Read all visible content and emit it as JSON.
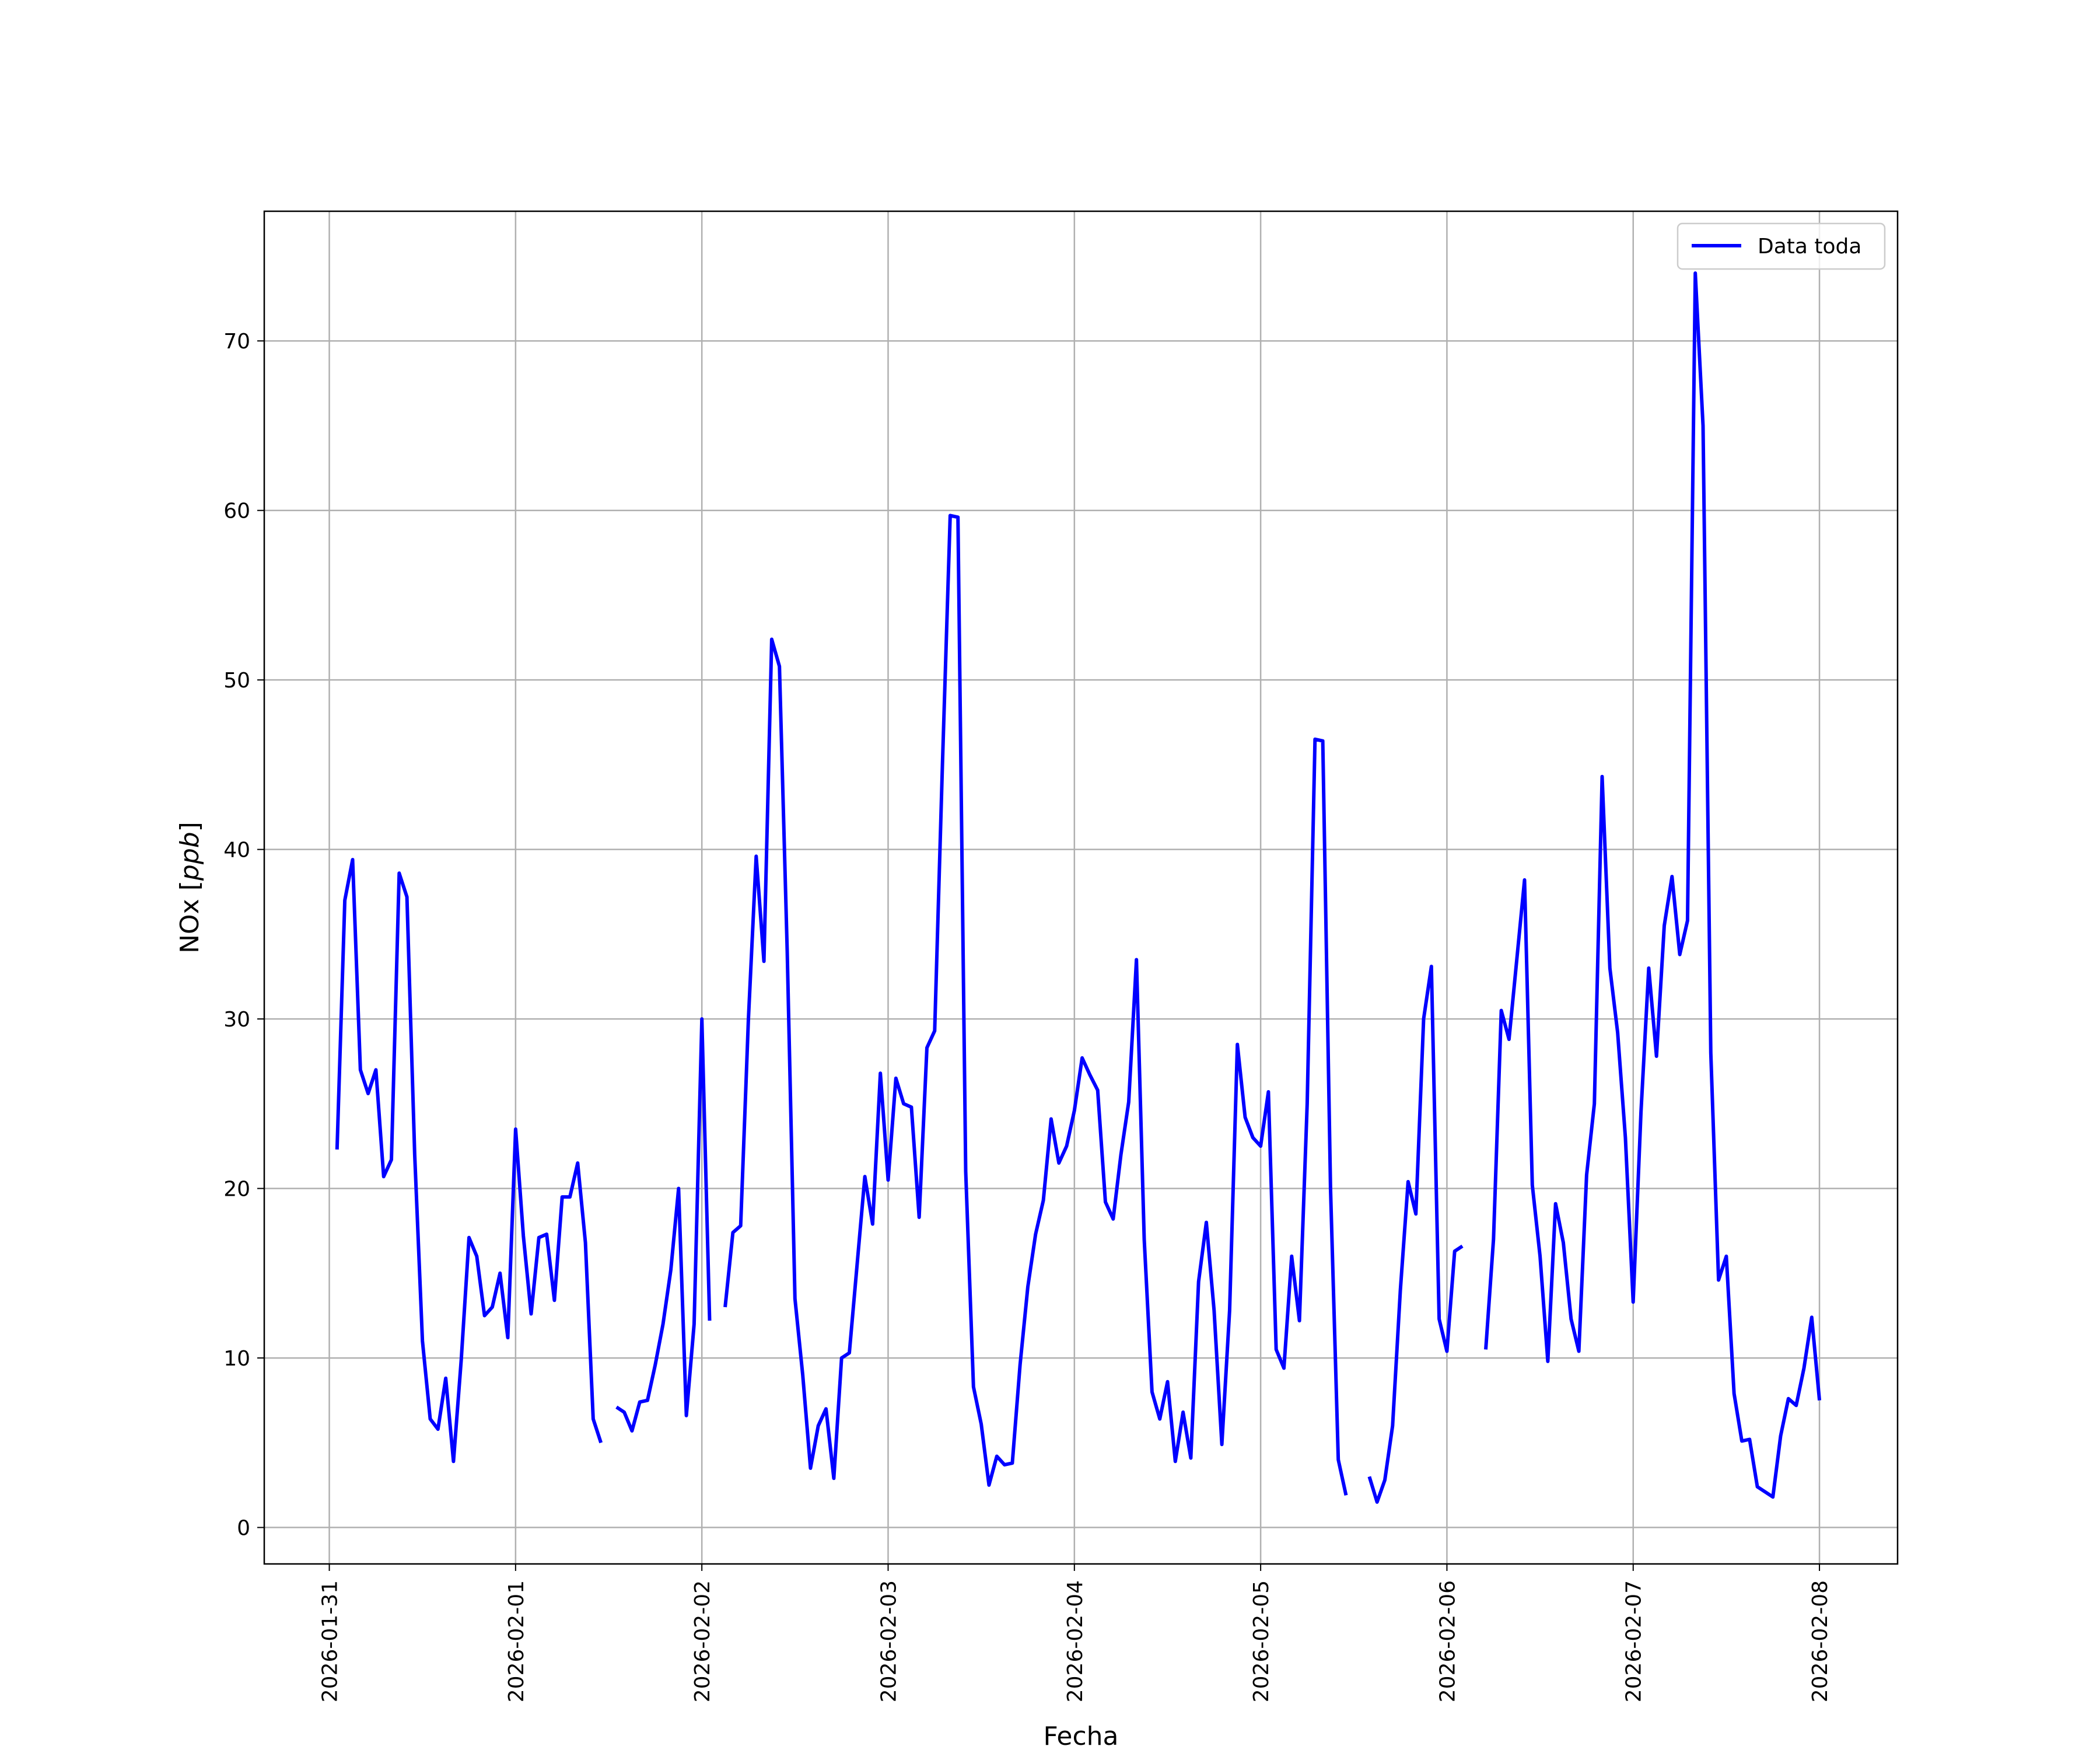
{
  "chart_data": {
    "type": "line",
    "title": "",
    "xlabel": "Fecha",
    "ylabel": "NOx [ppb]",
    "ylabel_parts": {
      "text": "NOx [",
      "unit": "ppb",
      "close": "]"
    },
    "x_ticks": [
      "2026-01-31",
      "2026-02-01",
      "2026-02-02",
      "2026-02-03",
      "2026-02-04",
      "2026-02-05",
      "2026-02-06",
      "2026-02-07",
      "2026-02-08"
    ],
    "y_ticks": [
      "0",
      "10",
      "20",
      "30",
      "40",
      "50",
      "60",
      "70"
    ],
    "xlim": [
      "2026-01-30T15:37",
      "2026-02-08T10:04"
    ],
    "ylim": [
      -2.15,
      77.65
    ],
    "grid": true,
    "legend": {
      "position": "top-right",
      "entries": [
        "Data toda"
      ]
    },
    "colors": {
      "series": "#0000ff",
      "grid": "#b0b0b0",
      "axes": "#000000"
    },
    "series": [
      {
        "name": "Data toda",
        "color": "#0000ff",
        "segments": [
          [
            [
              "2026-01-31T01:00",
              22.3
            ],
            [
              "2026-01-31T02:00",
              37.0
            ],
            [
              "2026-01-31T03:00",
              39.4
            ],
            [
              "2026-01-31T04:00",
              27.0
            ],
            [
              "2026-01-31T05:00",
              25.6
            ],
            [
              "2026-01-31T06:00",
              27.0
            ],
            [
              "2026-01-31T07:00",
              20.7
            ],
            [
              "2026-01-31T08:00",
              21.7
            ],
            [
              "2026-01-31T09:00",
              38.6
            ],
            [
              "2026-01-31T10:00",
              37.2
            ],
            [
              "2026-01-31T11:00",
              22.0
            ],
            [
              "2026-01-31T12:00",
              11.0
            ],
            [
              "2026-01-31T13:00",
              6.4
            ],
            [
              "2026-01-31T14:00",
              5.8
            ],
            [
              "2026-01-31T15:00",
              8.8
            ],
            [
              "2026-01-31T16:00",
              3.9
            ],
            [
              "2026-01-31T17:00",
              9.9
            ],
            [
              "2026-01-31T18:00",
              17.1
            ],
            [
              "2026-01-31T19:00",
              16.0
            ],
            [
              "2026-01-31T20:00",
              12.5
            ],
            [
              "2026-01-31T21:00",
              13.0
            ],
            [
              "2026-01-31T22:00",
              15.0
            ],
            [
              "2026-01-31T23:00",
              11.2
            ],
            [
              "2026-02-01T00:00",
              23.5
            ],
            [
              "2026-02-01T01:00",
              17.2
            ],
            [
              "2026-02-01T02:00",
              12.6
            ],
            [
              "2026-02-01T03:00",
              17.1
            ],
            [
              "2026-02-01T04:00",
              17.3
            ],
            [
              "2026-02-01T05:00",
              13.4
            ],
            [
              "2026-02-01T06:00",
              19.5
            ],
            [
              "2026-02-01T07:00",
              19.5
            ],
            [
              "2026-02-01T08:00",
              21.5
            ],
            [
              "2026-02-01T09:00",
              16.8
            ],
            [
              "2026-02-01T10:00",
              6.4
            ],
            [
              "2026-02-01T11:00",
              5.0
            ]
          ],
          [
            [
              "2026-02-01T13:00",
              7.1
            ],
            [
              "2026-02-01T14:00",
              6.8
            ],
            [
              "2026-02-01T15:00",
              5.7
            ],
            [
              "2026-02-01T16:00",
              7.4
            ],
            [
              "2026-02-01T17:00",
              7.5
            ],
            [
              "2026-02-01T18:00",
              9.6
            ],
            [
              "2026-02-01T19:00",
              12.0
            ],
            [
              "2026-02-01T20:00",
              15.2
            ],
            [
              "2026-02-01T21:00",
              20.0
            ],
            [
              "2026-02-01T22:00",
              6.6
            ],
            [
              "2026-02-01T23:00",
              12.0
            ],
            [
              "2026-02-02T00:00",
              30.0
            ],
            [
              "2026-02-02T01:00",
              12.2
            ]
          ],
          [
            [
              "2026-02-02T03:00",
              13.0
            ],
            [
              "2026-02-02T04:00",
              17.4
            ],
            [
              "2026-02-02T05:00",
              17.8
            ],
            [
              "2026-02-02T06:00",
              30.0
            ],
            [
              "2026-02-02T07:00",
              39.6
            ],
            [
              "2026-02-02T08:00",
              33.4
            ],
            [
              "2026-02-02T09:00",
              52.4
            ],
            [
              "2026-02-02T10:00",
              50.8
            ],
            [
              "2026-02-02T11:00",
              34.0
            ],
            [
              "2026-02-02T12:00",
              13.5
            ],
            [
              "2026-02-02T13:00",
              9.0
            ],
            [
              "2026-02-02T14:00",
              3.5
            ],
            [
              "2026-02-02T15:00",
              6.0
            ],
            [
              "2026-02-02T16:00",
              7.0
            ],
            [
              "2026-02-02T17:00",
              2.9
            ],
            [
              "2026-02-02T18:00",
              10.0
            ],
            [
              "2026-02-02T19:00",
              10.3
            ],
            [
              "2026-02-02T20:00",
              15.5
            ],
            [
              "2026-02-02T21:00",
              20.7
            ],
            [
              "2026-02-02T22:00",
              17.9
            ],
            [
              "2026-02-02T23:00",
              26.8
            ],
            [
              "2026-02-03T00:00",
              20.5
            ],
            [
              "2026-02-03T01:00",
              26.5
            ],
            [
              "2026-02-03T02:00",
              25.0
            ],
            [
              "2026-02-03T03:00",
              24.8
            ],
            [
              "2026-02-03T04:00",
              18.3
            ],
            [
              "2026-02-03T05:00",
              28.3
            ],
            [
              "2026-02-03T06:00",
              29.3
            ],
            [
              "2026-02-03T07:00",
              45.0
            ],
            [
              "2026-02-03T08:00",
              59.7
            ],
            [
              "2026-02-03T09:00",
              59.6
            ],
            [
              "2026-02-03T10:00",
              21.0
            ],
            [
              "2026-02-03T11:00",
              8.3
            ],
            [
              "2026-02-03T12:00",
              6.1
            ],
            [
              "2026-02-03T13:00",
              2.5
            ],
            [
              "2026-02-03T14:00",
              4.2
            ],
            [
              "2026-02-03T15:00",
              3.7
            ],
            [
              "2026-02-03T16:00",
              3.8
            ],
            [
              "2026-02-03T17:00",
              9.6
            ],
            [
              "2026-02-03T18:00",
              14.2
            ],
            [
              "2026-02-03T19:00",
              17.3
            ],
            [
              "2026-02-03T20:00",
              19.3
            ],
            [
              "2026-02-03T21:00",
              24.1
            ],
            [
              "2026-02-03T22:00",
              21.5
            ],
            [
              "2026-02-03T23:00",
              22.5
            ],
            [
              "2026-02-04T00:00",
              24.6
            ],
            [
              "2026-02-04T01:00",
              27.7
            ],
            [
              "2026-02-04T02:00",
              26.7
            ],
            [
              "2026-02-04T03:00",
              25.8
            ],
            [
              "2026-02-04T04:00",
              19.2
            ],
            [
              "2026-02-04T05:00",
              18.2
            ],
            [
              "2026-02-04T06:00",
              22.0
            ],
            [
              "2026-02-04T07:00",
              25.1
            ],
            [
              "2026-02-04T08:00",
              33.5
            ],
            [
              "2026-02-04T09:00",
              17.0
            ],
            [
              "2026-02-04T10:00",
              8.0
            ],
            [
              "2026-02-04T11:00",
              6.4
            ],
            [
              "2026-02-04T12:00",
              8.6
            ],
            [
              "2026-02-04T13:00",
              3.9
            ],
            [
              "2026-02-04T14:00",
              6.8
            ],
            [
              "2026-02-04T15:00",
              4.1
            ],
            [
              "2026-02-04T16:00",
              14.5
            ],
            [
              "2026-02-04T17:00",
              18.0
            ],
            [
              "2026-02-04T18:00",
              12.8
            ],
            [
              "2026-02-04T19:00",
              4.9
            ],
            [
              "2026-02-04T20:00",
              12.8
            ],
            [
              "2026-02-04T21:00",
              28.5
            ],
            [
              "2026-02-04T22:00",
              24.2
            ],
            [
              "2026-02-04T23:00",
              23.0
            ],
            [
              "2026-02-05T00:00",
              22.5
            ],
            [
              "2026-02-05T01:00",
              25.7
            ],
            [
              "2026-02-05T02:00",
              10.5
            ],
            [
              "2026-02-05T03:00",
              9.4
            ],
            [
              "2026-02-05T04:00",
              16.0
            ],
            [
              "2026-02-05T05:00",
              12.2
            ],
            [
              "2026-02-05T06:00",
              25.0
            ],
            [
              "2026-02-05T07:00",
              46.5
            ],
            [
              "2026-02-05T08:00",
              46.4
            ],
            [
              "2026-02-05T09:00",
              20.0
            ],
            [
              "2026-02-05T10:00",
              4.0
            ],
            [
              "2026-02-05T11:00",
              1.9
            ]
          ],
          [
            [
              "2026-02-05T14:00",
              3.0
            ],
            [
              "2026-02-05T15:00",
              1.5
            ],
            [
              "2026-02-05T16:00",
              2.8
            ],
            [
              "2026-02-05T17:00",
              6.0
            ],
            [
              "2026-02-05T18:00",
              14.0
            ],
            [
              "2026-02-05T19:00",
              20.4
            ],
            [
              "2026-02-05T20:00",
              18.5
            ],
            [
              "2026-02-05T21:00",
              30.0
            ],
            [
              "2026-02-05T22:00",
              33.1
            ],
            [
              "2026-02-05T23:00",
              12.3
            ],
            [
              "2026-02-06T00:00",
              10.4
            ],
            [
              "2026-02-06T01:00",
              16.3
            ],
            [
              "2026-02-06T02:00",
              16.6
            ]
          ],
          [
            [
              "2026-02-06T05:00",
              10.5
            ],
            [
              "2026-02-06T06:00",
              17.0
            ],
            [
              "2026-02-06T07:00",
              30.5
            ],
            [
              "2026-02-06T08:00",
              28.8
            ],
            [
              "2026-02-06T09:00",
              33.5
            ],
            [
              "2026-02-06T10:00",
              38.2
            ],
            [
              "2026-02-06T11:00",
              20.2
            ],
            [
              "2026-02-06T12:00",
              16.0
            ],
            [
              "2026-02-06T13:00",
              9.8
            ],
            [
              "2026-02-06T14:00",
              19.1
            ],
            [
              "2026-02-06T15:00",
              16.8
            ],
            [
              "2026-02-06T16:00",
              12.3
            ],
            [
              "2026-02-06T17:00",
              10.4
            ],
            [
              "2026-02-06T18:00",
              20.8
            ],
            [
              "2026-02-06T19:00",
              25.0
            ],
            [
              "2026-02-06T20:00",
              44.3
            ],
            [
              "2026-02-06T21:00",
              33.0
            ],
            [
              "2026-02-06T22:00",
              29.2
            ],
            [
              "2026-02-06T23:00",
              23.0
            ],
            [
              "2026-02-07T00:00",
              13.3
            ],
            [
              "2026-02-07T01:00",
              24.5
            ],
            [
              "2026-02-07T02:00",
              33.0
            ],
            [
              "2026-02-07T03:00",
              27.8
            ],
            [
              "2026-02-07T04:00",
              35.5
            ],
            [
              "2026-02-07T05:00",
              38.4
            ],
            [
              "2026-02-07T06:00",
              33.8
            ],
            [
              "2026-02-07T07:00",
              35.8
            ],
            [
              "2026-02-07T08:00",
              74.0
            ],
            [
              "2026-02-07T09:00",
              65.0
            ],
            [
              "2026-02-07T10:00",
              28.0
            ],
            [
              "2026-02-07T11:00",
              14.6
            ],
            [
              "2026-02-07T12:00",
              16.0
            ],
            [
              "2026-02-07T13:00",
              7.9
            ],
            [
              "2026-02-07T14:00",
              5.1
            ],
            [
              "2026-02-07T15:00",
              5.2
            ],
            [
              "2026-02-07T16:00",
              2.4
            ],
            [
              "2026-02-07T17:00",
              2.1
            ],
            [
              "2026-02-07T18:00",
              1.8
            ],
            [
              "2026-02-07T19:00",
              5.4
            ],
            [
              "2026-02-07T20:00",
              7.6
            ],
            [
              "2026-02-07T21:00",
              7.2
            ],
            [
              "2026-02-07T22:00",
              9.4
            ],
            [
              "2026-02-07T23:00",
              12.4
            ],
            [
              "2026-02-08T00:00",
              7.5
            ]
          ]
        ]
      }
    ]
  }
}
